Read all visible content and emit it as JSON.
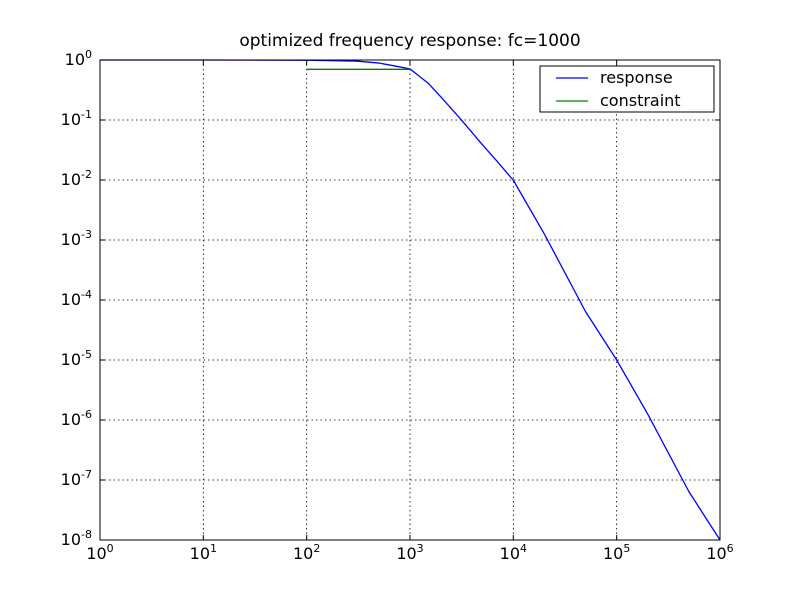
{
  "chart_data": {
    "type": "line",
    "title": "optimized frequency response: fc=1000",
    "xlabel": "",
    "ylabel": "",
    "xscale": "log",
    "yscale": "log",
    "xlim": [
      1,
      1000000
    ],
    "ylim": [
      1e-08,
      1
    ],
    "grid": true,
    "legend_position": "top-right",
    "x_ticks": [
      {
        "base": "10",
        "exp": "0"
      },
      {
        "base": "10",
        "exp": "1"
      },
      {
        "base": "10",
        "exp": "2"
      },
      {
        "base": "10",
        "exp": "3"
      },
      {
        "base": "10",
        "exp": "4"
      },
      {
        "base": "10",
        "exp": "5"
      },
      {
        "base": "10",
        "exp": "6"
      }
    ],
    "y_ticks": [
      {
        "base": "10",
        "exp": "0"
      },
      {
        "base": "10",
        "exp": "-1"
      },
      {
        "base": "10",
        "exp": "-2"
      },
      {
        "base": "10",
        "exp": "-3"
      },
      {
        "base": "10",
        "exp": "-4"
      },
      {
        "base": "10",
        "exp": "-5"
      },
      {
        "base": "10",
        "exp": "-6"
      },
      {
        "base": "10",
        "exp": "-7"
      },
      {
        "base": "10",
        "exp": "-8"
      }
    ],
    "series": [
      {
        "name": "response",
        "color": "#0000ff",
        "x": [
          1,
          10,
          100,
          300,
          500,
          700,
          1000,
          1500,
          2000,
          3000,
          5000,
          7000,
          10000,
          20000,
          50000,
          100000,
          200000,
          500000,
          1000000
        ],
        "y": [
          1,
          1,
          0.99,
          0.96,
          0.89,
          0.8,
          0.71,
          0.41,
          0.24,
          0.11,
          0.039,
          0.0203,
          0.0099,
          0.00125,
          6.4e-05,
          1e-05,
          1.25e-06,
          6.4e-08,
          1e-08
        ]
      },
      {
        "name": "constraint",
        "color": "#008000",
        "x": [
          100,
          1000
        ],
        "y": [
          0.7,
          0.7
        ]
      }
    ]
  }
}
